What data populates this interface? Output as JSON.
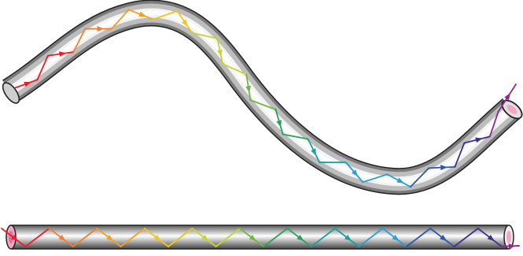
{
  "figure": {
    "subject": "light-propagation-by-total-internal-reflection",
    "icons": [
      "curved-fiber-tube",
      "straight-fiber-tube",
      "light-ray-arrow"
    ],
    "ray_colors": [
      "#e8202a",
      "#f08030",
      "#f3a01f",
      "#f2c619",
      "#c6d62e",
      "#6fb844",
      "#2aa35a",
      "#17a39a",
      "#2b9ed6",
      "#2b5aa8",
      "#3f2f8f",
      "#8d2a8e"
    ],
    "tube_colors": {
      "light": "#ffffff",
      "mid": "#c9c9c9",
      "dark": "#555555",
      "end_cap": "#f2a8c4"
    }
  }
}
